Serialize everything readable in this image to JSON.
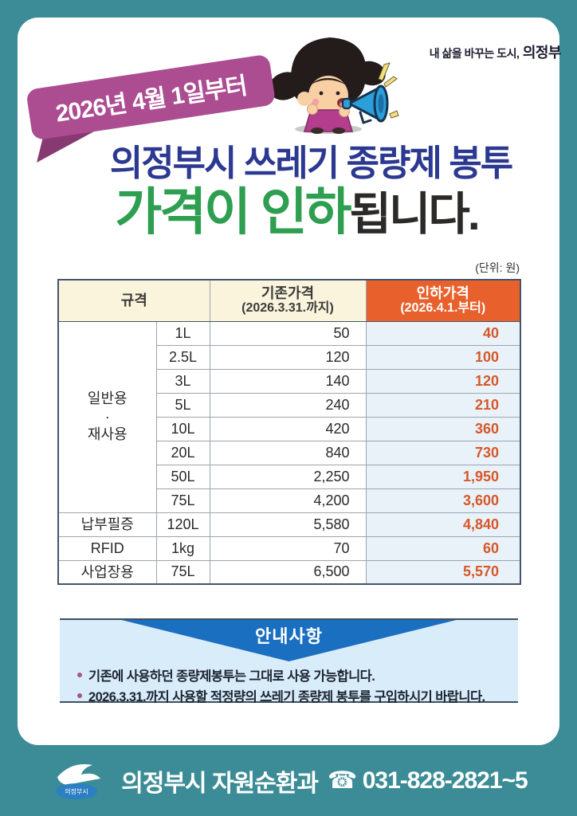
{
  "colors": {
    "frame_teal": "#3B8C96",
    "ribbon_magenta": "#AC4C91",
    "title_blue": "#2B3990",
    "title_green": "#2E9E50",
    "header_cream": "#FBF4DC",
    "header_orange": "#E8612C",
    "new_price_bg": "#EAF2F9",
    "new_price_text": "#D4582A",
    "notice_bg": "#D9ECF9",
    "notice_banner_blue": "#1B6FC0"
  },
  "ribbon": {
    "text": "2026년 4월 1일부터"
  },
  "slogan": {
    "pre": "내 삶을 바꾸는 도시,",
    "city": "의정부"
  },
  "title": {
    "line1": "의정부시 쓰레기 종량제 봉투",
    "line2_green": "가격이 인하",
    "line2_dark": "됩니다."
  },
  "unit_label": "(단위: 원)",
  "table": {
    "headers": {
      "spec": "규격",
      "old_price": "기존가격",
      "old_price_sub": "(2026.3.31.까지)",
      "new_price": "인하가격",
      "new_price_sub": "(2026.4.1.부터)"
    },
    "groups": [
      {
        "category": "일반용\n·\n재사용",
        "rows": [
          {
            "size": "1L",
            "old": "50",
            "new": "40"
          },
          {
            "size": "2.5L",
            "old": "120",
            "new": "100"
          },
          {
            "size": "3L",
            "old": "140",
            "new": "120"
          },
          {
            "size": "5L",
            "old": "240",
            "new": "210"
          },
          {
            "size": "10L",
            "old": "420",
            "new": "360"
          },
          {
            "size": "20L",
            "old": "840",
            "new": "730"
          },
          {
            "size": "50L",
            "old": "2,250",
            "new": "1,950"
          },
          {
            "size": "75L",
            "old": "4,200",
            "new": "3,600"
          }
        ]
      },
      {
        "category": "납부필증",
        "rows": [
          {
            "size": "120L",
            "old": "5,580",
            "new": "4,840"
          }
        ]
      },
      {
        "category": "RFID",
        "rows": [
          {
            "size": "1kg",
            "old": "70",
            "new": "60"
          }
        ]
      },
      {
        "category": "사업장용",
        "rows": [
          {
            "size": "75L",
            "old": "6,500",
            "new": "5,570"
          }
        ]
      }
    ]
  },
  "notice": {
    "title": "안내사항",
    "items": [
      "기존에 사용하던 종량제봉투는 그대로 사용 가능합니다.",
      "2026.3.31.까지 사용할 적정량의 쓰레기 종량제 봉투를 구입하시기 바랍니다."
    ]
  },
  "footer": {
    "logo_text": "의정부시",
    "department": "의정부시 자원순환과",
    "phone": "☎ 031-828-2821~5"
  }
}
